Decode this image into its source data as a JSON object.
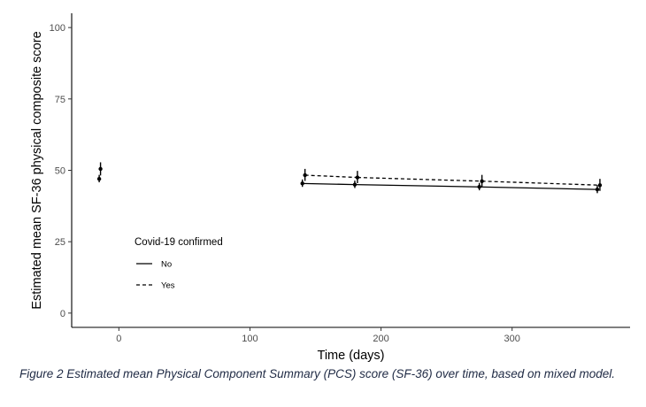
{
  "chart_data": {
    "type": "line",
    "title": "",
    "xlabel": "Time (days)",
    "ylabel": "Estimated mean SF-36 physical composite score",
    "xlim": [
      -36,
      390
    ],
    "ylim": [
      -5,
      105
    ],
    "xticks": [
      0,
      100,
      200,
      300
    ],
    "yticks": [
      0,
      25,
      50,
      75,
      100
    ],
    "grid": false,
    "legend": {
      "title": "Covid-19 confirmed",
      "position": "inside-bottom-left",
      "entries": [
        {
          "label": "No",
          "linestyle": "solid"
        },
        {
          "label": "Yes",
          "linestyle": "dashed"
        }
      ]
    },
    "series": [
      {
        "name": "No",
        "linestyle": "solid",
        "points": [
          {
            "x": -15,
            "y": 47.0,
            "ci": [
              45.8,
              48.4
            ]
          },
          {
            "x": 140,
            "y": 45.4,
            "ci": [
              44.2,
              46.8
            ]
          },
          {
            "x": 180,
            "y": 45.0,
            "ci": [
              43.8,
              46.4
            ]
          },
          {
            "x": 275,
            "y": 44.2,
            "ci": [
              43.0,
              45.6
            ]
          },
          {
            "x": 365,
            "y": 43.3,
            "ci": [
              42.0,
              44.8
            ]
          }
        ]
      },
      {
        "name": "Yes",
        "linestyle": "dashed",
        "points": [
          {
            "x": -14,
            "y": 50.5,
            "ci": [
              48.2,
              52.8
            ]
          },
          {
            "x": 142,
            "y": 48.3,
            "ci": [
              46.3,
              50.5
            ]
          },
          {
            "x": 182,
            "y": 47.5,
            "ci": [
              45.5,
              49.8
            ]
          },
          {
            "x": 277,
            "y": 46.2,
            "ci": [
              44.2,
              48.4
            ]
          },
          {
            "x": 367,
            "y": 44.8,
            "ci": [
              42.8,
              47.0
            ]
          }
        ]
      }
    ]
  },
  "caption": "Figure 2 Estimated mean Physical Component Summary (PCS) score (SF-36) over time, based on mixed model."
}
